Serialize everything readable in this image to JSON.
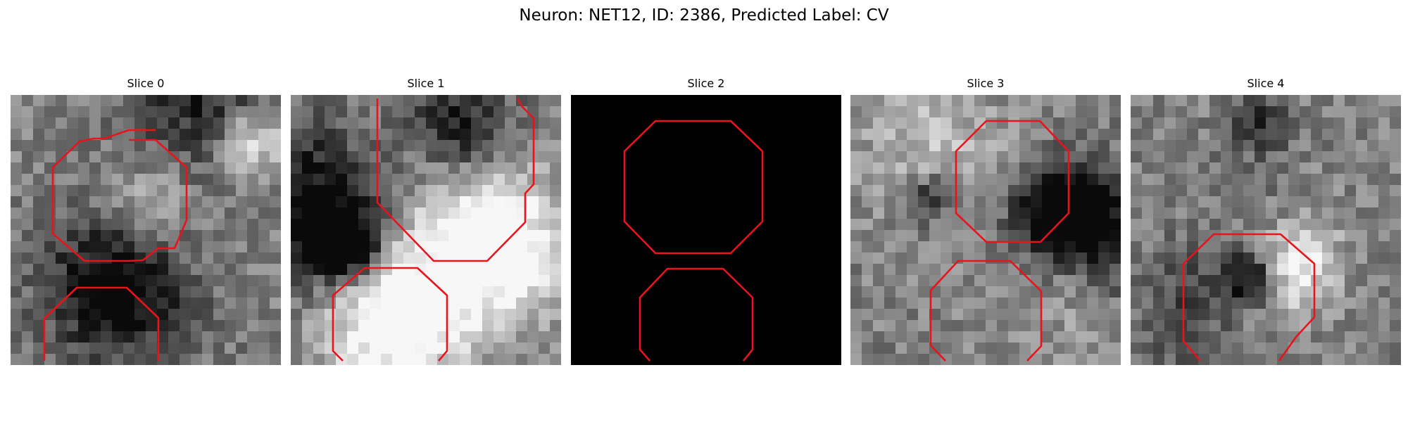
{
  "figure": {
    "title": "Neuron: NET12, ID: 2386, Predicted Label: CV"
  },
  "panels": [
    {
      "title": "Slice 0",
      "background": "grayscale",
      "seed": 11
    },
    {
      "title": "Slice 1",
      "background": "grayscale",
      "seed": 23
    },
    {
      "title": "Slice 2",
      "background": "black",
      "seed": 0
    },
    {
      "title": "Slice 3",
      "background": "grayscale",
      "seed": 37
    },
    {
      "title": "Slice 4",
      "background": "grayscale",
      "seed": 53
    }
  ],
  "colors": {
    "contour": "#e8131b",
    "black_slice": "#000000"
  }
}
